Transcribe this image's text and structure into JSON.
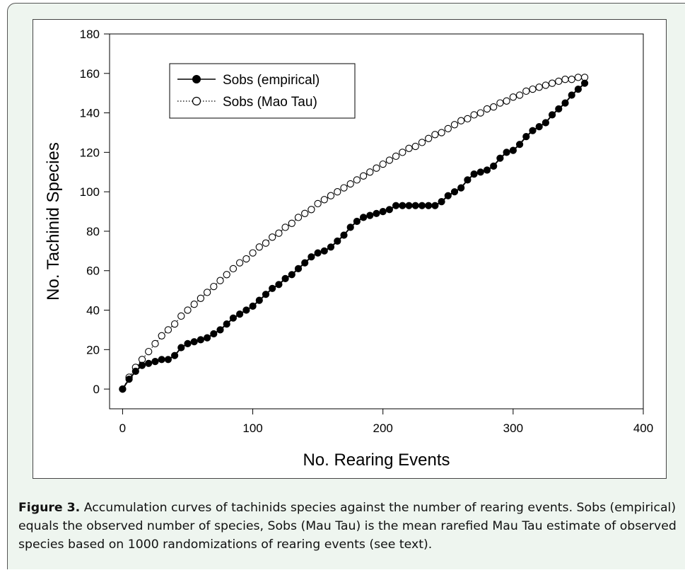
{
  "caption": {
    "label": "Figure 3.",
    "text": "Accumulation curves of tachinids species against the number of rearing events. Sobs (empirical) equals the observed number of species, Sobs (Mau Tau) is the mean rarefied Mau Tau estimate of observed species based on 1000 randomizations of rearing events (see text)."
  },
  "chart_data": {
    "type": "line",
    "title": "",
    "xlabel": "No. Rearing Events",
    "ylabel": "No. Tachinid Species",
    "xlim": [
      -10,
      400
    ],
    "ylim": [
      -10,
      180
    ],
    "xticks": [
      0,
      100,
      200,
      300,
      400
    ],
    "yticks": [
      0,
      20,
      40,
      60,
      80,
      100,
      120,
      140,
      160,
      180
    ],
    "grid": false,
    "legend_position": "top-left",
    "series": [
      {
        "name": "Sobs (empirical)",
        "marker": "filled-circle",
        "line": "solid",
        "color": "#000000",
        "points": [
          [
            0,
            0
          ],
          [
            5,
            5
          ],
          [
            10,
            9
          ],
          [
            15,
            12
          ],
          [
            20,
            13
          ],
          [
            25,
            14
          ],
          [
            30,
            15
          ],
          [
            35,
            15
          ],
          [
            40,
            17
          ],
          [
            45,
            21
          ],
          [
            50,
            23
          ],
          [
            55,
            24
          ],
          [
            60,
            25
          ],
          [
            65,
            26
          ],
          [
            70,
            28
          ],
          [
            75,
            30
          ],
          [
            80,
            33
          ],
          [
            85,
            36
          ],
          [
            90,
            38
          ],
          [
            95,
            40
          ],
          [
            100,
            42
          ],
          [
            105,
            45
          ],
          [
            110,
            48
          ],
          [
            115,
            51
          ],
          [
            120,
            53
          ],
          [
            125,
            56
          ],
          [
            130,
            58
          ],
          [
            135,
            61
          ],
          [
            140,
            64
          ],
          [
            145,
            67
          ],
          [
            150,
            69
          ],
          [
            155,
            70
          ],
          [
            160,
            72
          ],
          [
            165,
            75
          ],
          [
            170,
            78
          ],
          [
            175,
            82
          ],
          [
            180,
            85
          ],
          [
            185,
            87
          ],
          [
            190,
            88
          ],
          [
            195,
            89
          ],
          [
            200,
            90
          ],
          [
            205,
            91
          ],
          [
            210,
            93
          ],
          [
            215,
            93
          ],
          [
            220,
            93
          ],
          [
            225,
            93
          ],
          [
            230,
            93
          ],
          [
            235,
            93
          ],
          [
            240,
            93
          ],
          [
            245,
            95
          ],
          [
            250,
            98
          ],
          [
            255,
            100
          ],
          [
            260,
            102
          ],
          [
            265,
            106
          ],
          [
            270,
            109
          ],
          [
            275,
            110
          ],
          [
            280,
            111
          ],
          [
            285,
            113
          ],
          [
            290,
            117
          ],
          [
            295,
            120
          ],
          [
            300,
            121
          ],
          [
            305,
            124
          ],
          [
            310,
            128
          ],
          [
            315,
            131
          ],
          [
            320,
            133
          ],
          [
            325,
            135
          ],
          [
            330,
            139
          ],
          [
            335,
            142
          ],
          [
            340,
            145
          ],
          [
            345,
            149
          ],
          [
            350,
            152
          ],
          [
            355,
            155
          ]
        ]
      },
      {
        "name": "Sobs (Mao Tau)",
        "marker": "open-circle",
        "line": "dotted",
        "color": "#000000",
        "points": [
          [
            0,
            0
          ],
          [
            5,
            6
          ],
          [
            10,
            11
          ],
          [
            15,
            15
          ],
          [
            20,
            19
          ],
          [
            25,
            23
          ],
          [
            30,
            27
          ],
          [
            35,
            30
          ],
          [
            40,
            33
          ],
          [
            45,
            37
          ],
          [
            50,
            40
          ],
          [
            55,
            43
          ],
          [
            60,
            46
          ],
          [
            65,
            49
          ],
          [
            70,
            52
          ],
          [
            75,
            55
          ],
          [
            80,
            58
          ],
          [
            85,
            61
          ],
          [
            90,
            64
          ],
          [
            95,
            66
          ],
          [
            100,
            69
          ],
          [
            105,
            72
          ],
          [
            110,
            74
          ],
          [
            115,
            77
          ],
          [
            120,
            79
          ],
          [
            125,
            82
          ],
          [
            130,
            84
          ],
          [
            135,
            87
          ],
          [
            140,
            89
          ],
          [
            145,
            91
          ],
          [
            150,
            94
          ],
          [
            155,
            96
          ],
          [
            160,
            98
          ],
          [
            165,
            100
          ],
          [
            170,
            102
          ],
          [
            175,
            104
          ],
          [
            180,
            106
          ],
          [
            185,
            108
          ],
          [
            190,
            110
          ],
          [
            195,
            112
          ],
          [
            200,
            114
          ],
          [
            205,
            116
          ],
          [
            210,
            118
          ],
          [
            215,
            120
          ],
          [
            220,
            122
          ],
          [
            225,
            123
          ],
          [
            230,
            125
          ],
          [
            235,
            127
          ],
          [
            240,
            129
          ],
          [
            245,
            130
          ],
          [
            250,
            132
          ],
          [
            255,
            134
          ],
          [
            260,
            136
          ],
          [
            265,
            137
          ],
          [
            270,
            139
          ],
          [
            275,
            140
          ],
          [
            280,
            142
          ],
          [
            285,
            143
          ],
          [
            290,
            145
          ],
          [
            295,
            146
          ],
          [
            300,
            148
          ],
          [
            305,
            149
          ],
          [
            310,
            151
          ],
          [
            315,
            152
          ],
          [
            320,
            153
          ],
          [
            325,
            154
          ],
          [
            330,
            155
          ],
          [
            335,
            156
          ],
          [
            340,
            157
          ],
          [
            345,
            157
          ],
          [
            350,
            158
          ],
          [
            355,
            158
          ]
        ]
      }
    ]
  }
}
